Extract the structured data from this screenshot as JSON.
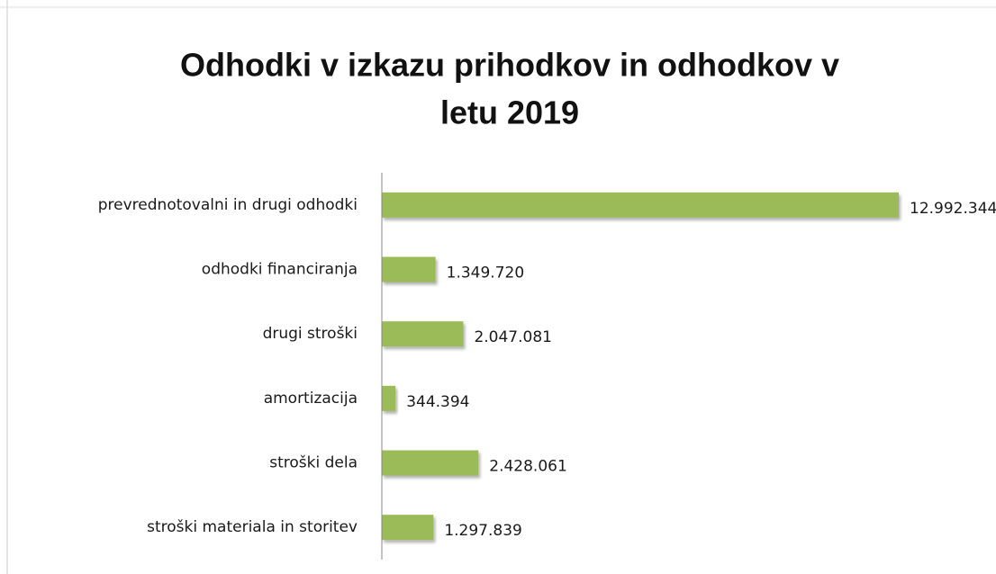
{
  "chart_data": {
    "type": "bar",
    "orientation": "horizontal",
    "title": [
      "Odhodki v izkazu prihodkov in odhodkov v",
      "letu 2019"
    ],
    "categories": [
      "prevrednotovalni in drugi odhodki",
      "odhodki financiranja",
      "drugi stroški",
      "amortizacija",
      "stroški dela",
      "stroški materiala in storitev"
    ],
    "values": [
      12992344,
      1349720,
      2047081,
      344394,
      2428061,
      1297839
    ],
    "value_labels": [
      "12.992.344",
      "1.349.720",
      "2.047.081",
      "344.394",
      "2.428.061",
      "1.297.839"
    ],
    "color": "#9bbb59"
  }
}
